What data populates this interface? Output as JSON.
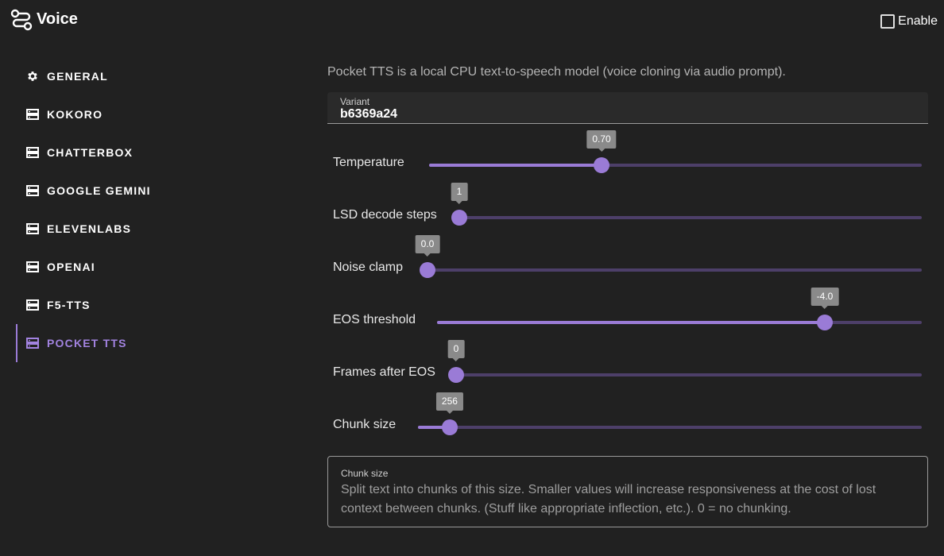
{
  "app": {
    "title": "Voice",
    "icon": "route-icon"
  },
  "enable": {
    "label": "Enable",
    "checked": false
  },
  "colors": {
    "background": "#212121",
    "accent": "#9a7bd6",
    "track": "#4d3f69"
  },
  "sidebar": {
    "items": [
      {
        "label": "GENERAL",
        "icon": "gear-icon",
        "active": false
      },
      {
        "label": "KOKORO",
        "icon": "server-icon",
        "active": false
      },
      {
        "label": "CHATTERBOX",
        "icon": "server-icon",
        "active": false
      },
      {
        "label": "GOOGLE GEMINI",
        "icon": "server-icon",
        "active": false
      },
      {
        "label": "ELEVENLABS",
        "icon": "server-icon",
        "active": false
      },
      {
        "label": "OPENAI",
        "icon": "server-icon",
        "active": false
      },
      {
        "label": "F5-TTS",
        "icon": "server-icon",
        "active": false
      },
      {
        "label": "POCKET TTS",
        "icon": "server-icon",
        "active": true
      }
    ]
  },
  "main": {
    "description": "Pocket TTS is a local CPU text-to-speech model (voice cloning via audio prompt).",
    "variant": {
      "label": "Variant",
      "value": "b6369a24"
    },
    "sliders": [
      {
        "label": "Temperature",
        "value": "0.70",
        "fraction": 0.35
      },
      {
        "label": "LSD decode steps",
        "value": "1",
        "fraction": 0.0
      },
      {
        "label": "Noise clamp",
        "value": "0.0",
        "fraction": 0.0
      },
      {
        "label": "EOS threshold",
        "value": "-4.0",
        "fraction": 0.8
      },
      {
        "label": "Frames after EOS",
        "value": "0",
        "fraction": 0.0
      },
      {
        "label": "Chunk size",
        "value": "256",
        "fraction": 0.063
      }
    ],
    "help": {
      "title": "Chunk size",
      "text": "Split text into chunks of this size. Smaller values will increase responsiveness at the cost of lost context between chunks. (Stuff like appropriate inflection, etc.). 0 = no chunking."
    }
  }
}
